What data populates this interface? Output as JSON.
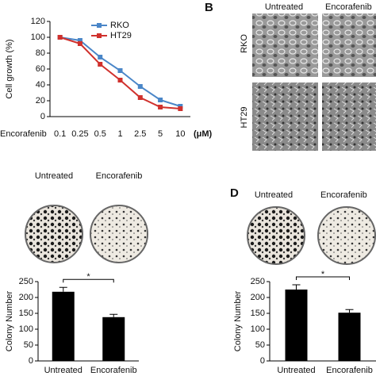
{
  "chart_data": [
    {
      "type": "line",
      "y_label": "Cell growth (%)",
      "x_label": "Encorafenib",
      "x_unit": "(μM)",
      "categories": [
        "0.1",
        "0.25",
        "0.5",
        "1",
        "2.5",
        "5",
        "10"
      ],
      "series": [
        {
          "name": "RKO",
          "color": "#4a86c8",
          "values": [
            100,
            96,
            75,
            58,
            38,
            21,
            13
          ]
        },
        {
          "name": "HT29",
          "color": "#d0312d",
          "values": [
            100,
            92,
            66,
            46,
            24,
            12,
            10
          ]
        }
      ],
      "ylim": [
        0,
        120
      ],
      "yticks": [
        0,
        20,
        40,
        60,
        80,
        100,
        120
      ]
    },
    {
      "type": "bar",
      "y_label": "Colony Number",
      "categories": [
        "Untreated",
        "Encorafenib"
      ],
      "values": [
        218,
        138
      ],
      "errors": [
        14,
        9
      ],
      "color": "#000000",
      "annotation": "*",
      "ylim": [
        0,
        250
      ],
      "yticks": [
        0,
        50,
        100,
        150,
        200,
        250
      ]
    },
    {
      "type": "bar",
      "y_label": "Colony Number",
      "categories": [
        "Untreated",
        "Encorafenib"
      ],
      "values": [
        225,
        152
      ],
      "errors": [
        15,
        10
      ],
      "color": "#000000",
      "annotation": "*",
      "ylim": [
        0,
        250
      ],
      "yticks": [
        0,
        50,
        100,
        150,
        200,
        250
      ]
    }
  ],
  "panels": {
    "b_letter": "B",
    "d_letter": "D",
    "b_cols": [
      "Untreated",
      "Encorafenib"
    ],
    "b_rows": [
      "RKO",
      "HT29"
    ],
    "c_cols": [
      "Untreated",
      "Encorafenib"
    ],
    "d_cols": [
      "Untreated",
      "Encorafenib"
    ]
  }
}
